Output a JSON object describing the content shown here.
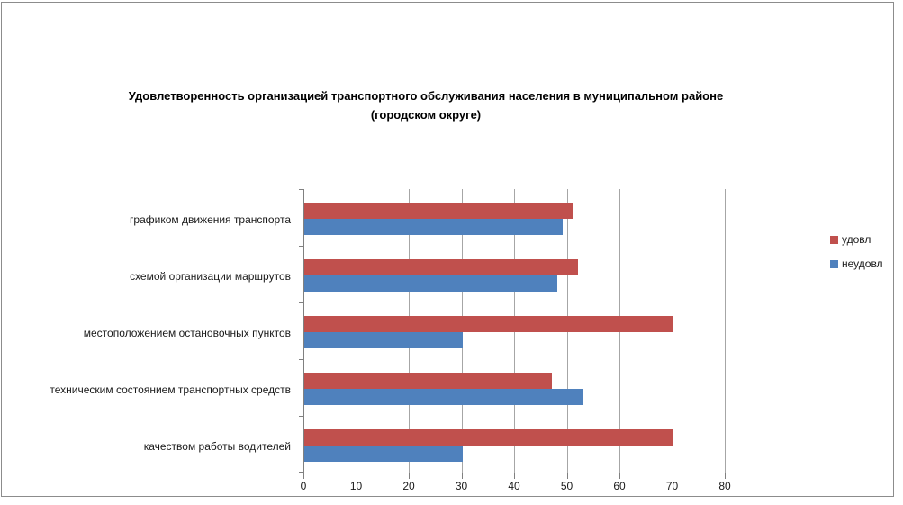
{
  "chart_data": {
    "type": "bar",
    "orientation": "horizontal",
    "title_line1": "Удовлетворенность организацией транспортного обслуживания населения в муниципальном районе",
    "title_line2": "(городском округе)",
    "categories": [
      "графиком движения  транспорта",
      "схемой организации маршрутов",
      "местоположением  остановочных пунктов",
      "техническим  состоянием транспортных средств",
      "качеством работы водителей"
    ],
    "series": [
      {
        "id": "udovl",
        "name": "удовл",
        "color": "#C0504D",
        "values": [
          51,
          52,
          70,
          47,
          70
        ]
      },
      {
        "id": "neudovl",
        "name": "неудовл",
        "color": "#4F81BD",
        "values": [
          49,
          48,
          30,
          53,
          30
        ]
      }
    ],
    "xlim": [
      0,
      80
    ],
    "xticks": [
      0,
      10,
      20,
      30,
      40,
      50,
      60,
      70,
      80
    ],
    "grid": true,
    "legend_position": "right",
    "colors": {
      "gridline": "#a6a6a6",
      "axis": "#808080",
      "frame_border": "#8c8c8c",
      "text": "#1a1a1a"
    }
  }
}
